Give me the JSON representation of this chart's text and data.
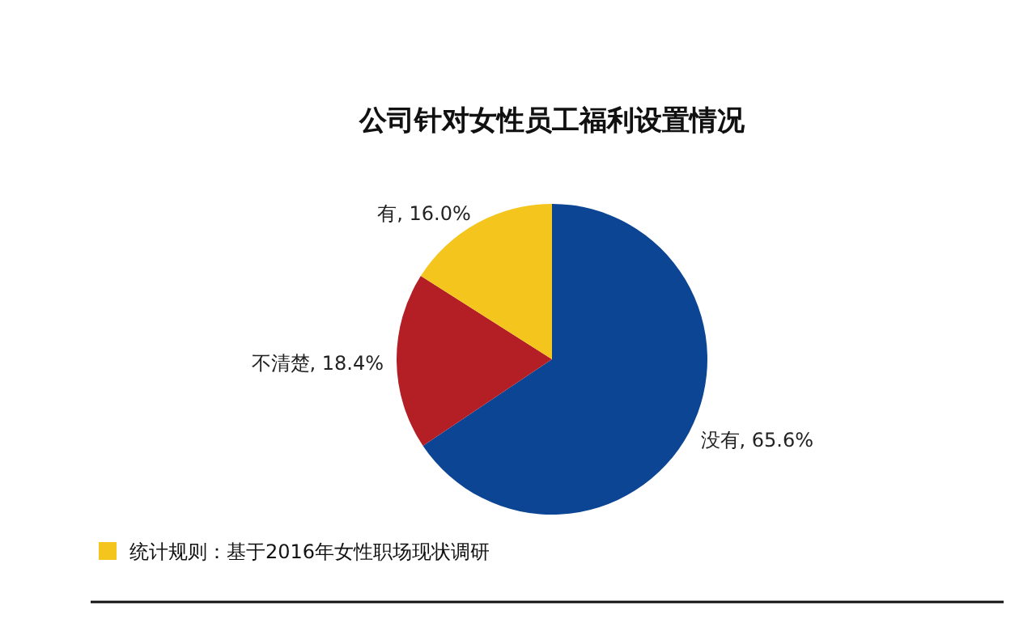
{
  "chart_data": {
    "type": "pie",
    "title": "公司针对女性员工福利设置情况",
    "categories": [
      "没有",
      "不清楚",
      "有"
    ],
    "values": [
      65.6,
      18.4,
      16.0
    ],
    "colors": [
      "#0b4594",
      "#b41f26",
      "#f4c51c"
    ],
    "value_labels": [
      "65.6%",
      "18.4%",
      "16.0%"
    ],
    "annotations": [
      "统计规则：基于2016年女性职场现状调研"
    ]
  }
}
